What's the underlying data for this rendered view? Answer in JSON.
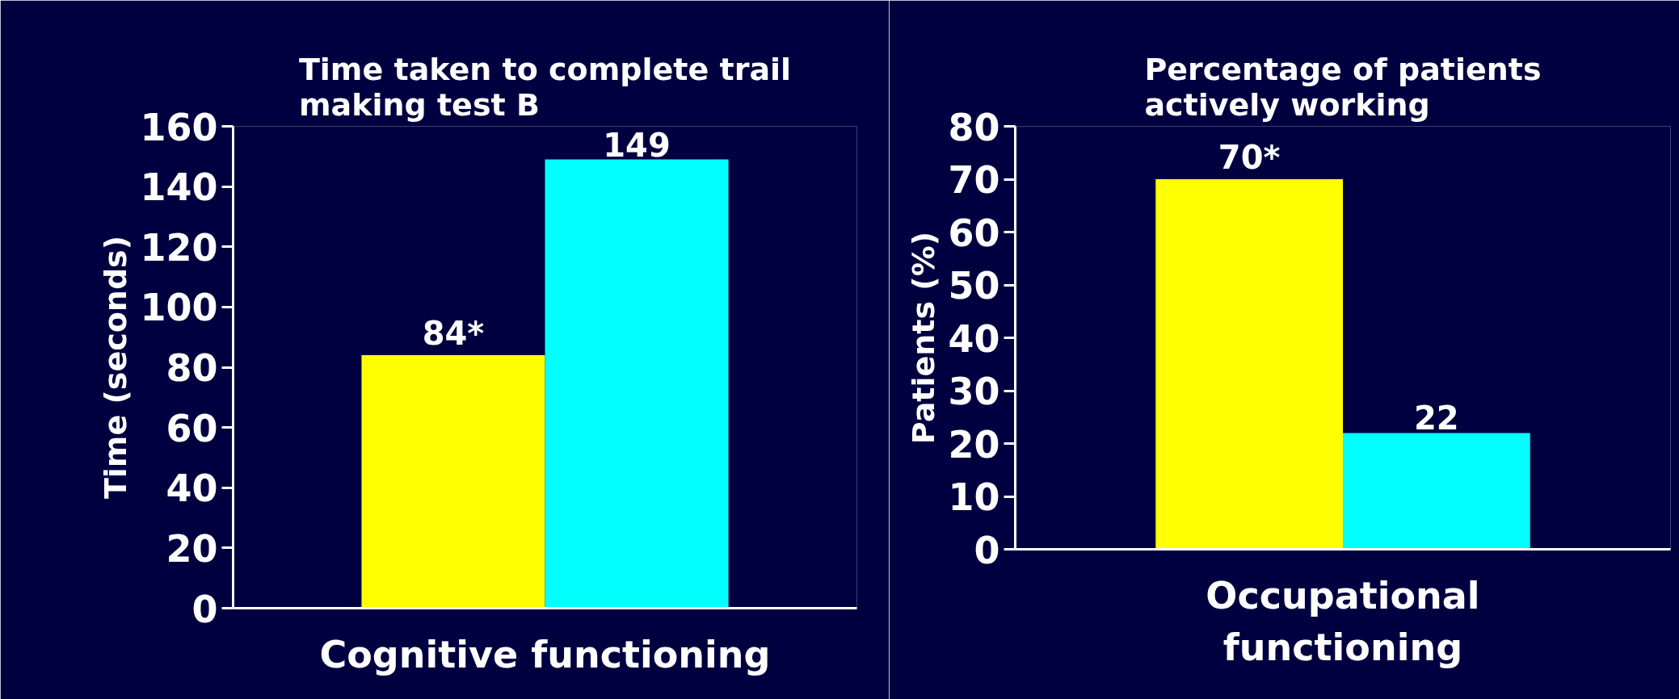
{
  "chart_data": [
    {
      "type": "bar",
      "title": "Time taken to complete trail making test B",
      "xlabel": "Cognitive functioning",
      "ylabel": "Time (seconds)",
      "categories": [
        null,
        null
      ],
      "values": [
        84,
        149
      ],
      "colors": [
        "#ffff00",
        "#00ffff"
      ],
      "value_labels": [
        "84*",
        "149"
      ],
      "ylim": [
        0,
        160
      ],
      "yticks": [
        0,
        20,
        40,
        60,
        80,
        100,
        120,
        140,
        160
      ],
      "grid": false
    },
    {
      "type": "bar",
      "title": "Percentage of patients actively working",
      "xlabel": "Occupational functioning",
      "ylabel": "Patients (%)",
      "categories": [
        null,
        null
      ],
      "values": [
        70,
        22
      ],
      "colors": [
        "#ffff00",
        "#00ffff"
      ],
      "value_labels": [
        "70*",
        "22"
      ],
      "ylim": [
        0,
        80
      ],
      "yticks": [
        0,
        10,
        20,
        30,
        40,
        50,
        60,
        70,
        80
      ],
      "grid": false
    }
  ]
}
